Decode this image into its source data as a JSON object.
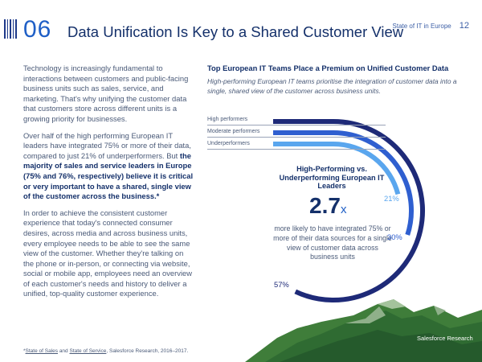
{
  "header": {
    "section_number": "06",
    "title": "Data Unification Is Key to a Shared Customer View",
    "report_name": "State of IT in Europe",
    "page_number": "12"
  },
  "body": {
    "p1": "Technology is increasingly fundamental to interactions between customers and public-facing business units such as sales, service, and marketing. That's why unifying the customer data that customers store across different units is a growing priority for businesses.",
    "p2_pre": "Over half of the high performing European IT leaders have integrated 75% or more of their data, compared to just 21% of underperformers. But ",
    "p2_bold": "the majority of sales and service leaders in Europe (75% and 76%, respectively) believe it is critical or very important to have a shared, single view of the customer across the business.*",
    "p3": "In order to achieve the consistent customer experience that today's connected consumer desires, across media and across business units, every employee needs to be able to see the same view of the customer. Whether they're talking on the phone or in-person, or connecting via website, social or mobile app, employees need an overview of each customer's needs and history to deliver a unified, top-quality customer experience."
  },
  "chart": {
    "title": "Top European IT Teams Place a Premium on Unified Customer Data",
    "subtitle": "High-performing European IT teams prioritise the integration of customer data into a single, shared view of the customer across business units.",
    "legend": [
      "High performers",
      "Moderate performers",
      "Underperformers"
    ],
    "center_title": "High-Performing vs. Underperforming European IT Leaders",
    "multiplier_value": "2.7",
    "multiplier_suffix": "x",
    "center_text": "more likely to have integrated 75% or more of their data sources for a single view of customer data across business units",
    "colors": {
      "high": "#1e2a78",
      "moderate": "#2f5fd0",
      "under": "#5aa6ee",
      "track": "#e6e9ef"
    }
  },
  "chart_data": {
    "type": "radial-bar",
    "categories": [
      "High performers",
      "Moderate performers",
      "Underperformers"
    ],
    "values": [
      57,
      30,
      21
    ],
    "labels": [
      "57%",
      "30%",
      "21%"
    ],
    "unit": "%"
  },
  "footer": {
    "note_pre": "*",
    "link1": "State of Sales",
    "and": " and ",
    "link2": "State of Service",
    "note_post": ", Salesforce Research, 2016–2017.",
    "credit": "Salesforce Research"
  }
}
